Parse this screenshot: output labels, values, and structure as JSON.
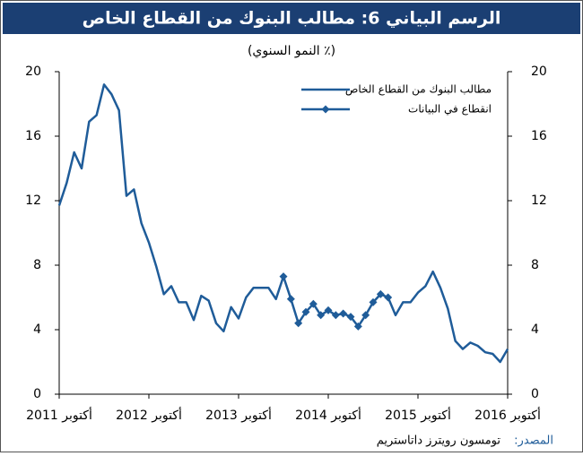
{
  "chart_data": {
    "type": "line",
    "title": "الرسم البياني 6: مطالب البنوك من القطاع الخاص",
    "subtitle": "(٪ النمو السنوي)",
    "source_label": "المصدر:",
    "source": "تومسون رويترز داتاستريم",
    "categories": [
      "أكتوبر 2011",
      null,
      null,
      null,
      null,
      null,
      null,
      null,
      null,
      null,
      null,
      null,
      "أكتوبر 2012",
      null,
      null,
      null,
      null,
      null,
      null,
      null,
      null,
      null,
      null,
      null,
      "أكتوبر 2013",
      null,
      null,
      null,
      null,
      null,
      null,
      null,
      null,
      null,
      null,
      null,
      "أكتوبر 2014",
      null,
      null,
      null,
      null,
      null,
      null,
      null,
      null,
      null,
      null,
      null,
      "أكتوبر 2015",
      null,
      null,
      null,
      null,
      null,
      null,
      null,
      null,
      null,
      null,
      null,
      "أكتوبر 2016"
    ],
    "series": [
      {
        "name": "مطالب البنوك من القطاع الخاص",
        "color": "#1f5c99",
        "marker": false,
        "values": [
          11.7,
          13.1,
          15.0,
          14.0,
          16.9,
          17.3,
          19.2,
          18.6,
          17.6,
          12.3,
          12.7,
          10.6,
          9.4,
          7.9,
          6.2,
          6.7,
          5.7,
          5.7,
          4.6,
          6.1,
          5.8,
          4.4,
          3.9,
          5.4,
          4.7,
          6.0,
          6.6,
          6.6,
          6.6,
          5.9,
          7.3,
          null,
          null,
          null,
          null,
          null,
          null,
          null,
          null,
          null,
          null,
          null,
          null,
          null,
          6.0,
          4.9,
          5.7,
          5.7,
          6.3,
          6.7,
          7.6,
          6.6,
          5.3,
          3.3,
          2.8,
          3.2,
          3.0,
          2.6,
          2.5,
          2.0,
          2.8
        ]
      },
      {
        "name": "انقطاع في البيانات",
        "color": "#1f5c99",
        "marker": true,
        "values": [
          null,
          null,
          null,
          null,
          null,
          null,
          null,
          null,
          null,
          null,
          null,
          null,
          null,
          null,
          null,
          null,
          null,
          null,
          null,
          null,
          null,
          null,
          null,
          null,
          null,
          null,
          null,
          null,
          null,
          null,
          7.3,
          5.9,
          4.4,
          5.1,
          5.6,
          4.9,
          5.2,
          4.9,
          5.0,
          4.8,
          4.2,
          4.9,
          5.7,
          6.2,
          6.0,
          null,
          null,
          null,
          null,
          null,
          null,
          null,
          null,
          null,
          null,
          null,
          null,
          null,
          null,
          null,
          null
        ]
      }
    ],
    "ylim": [
      0,
      20
    ],
    "yticks": [
      0,
      4,
      8,
      12,
      16,
      20
    ],
    "grid": false
  }
}
